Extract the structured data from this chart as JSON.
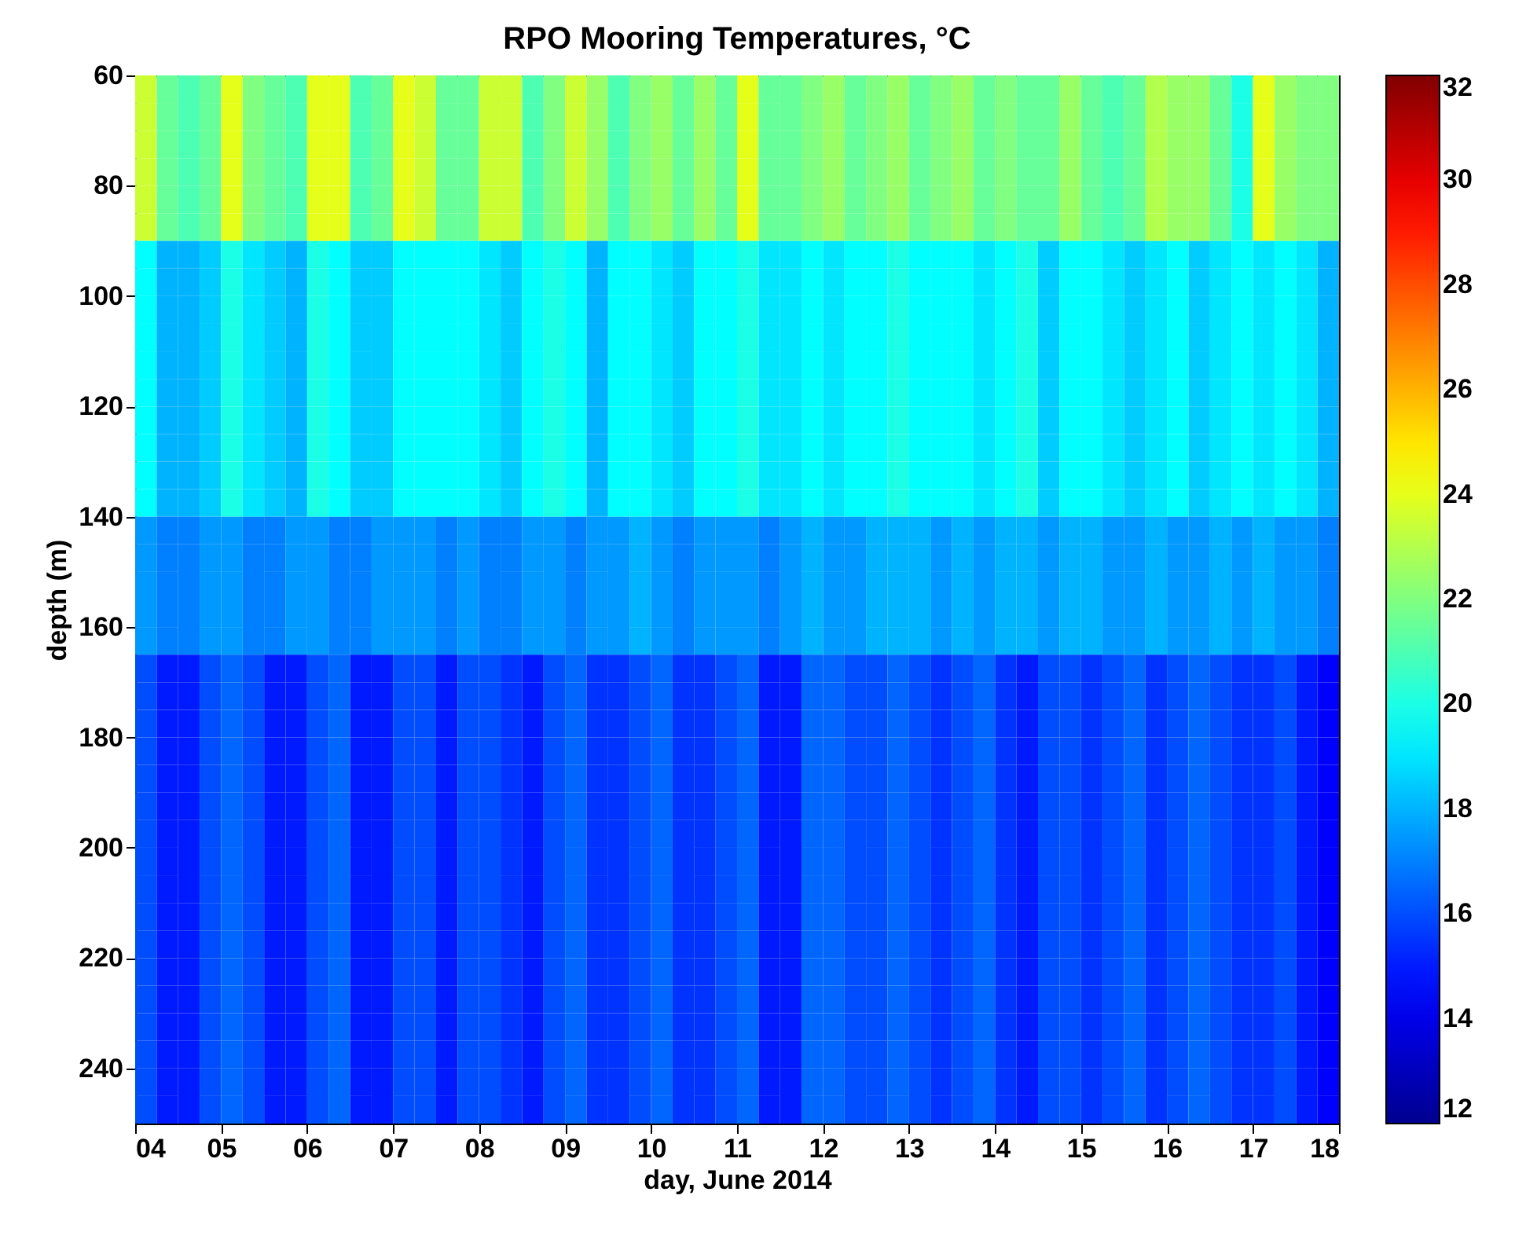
{
  "chart_data": {
    "type": "heatmap",
    "title": "RPO Mooring Temperatures, °C",
    "xlabel": "day, June 2014",
    "ylabel": "depth (m)",
    "x": [
      4.125,
      4.375,
      4.625,
      4.875,
      5.125,
      5.375,
      5.625,
      5.875,
      6.125,
      6.375,
      6.625,
      6.875,
      7.125,
      7.375,
      7.625,
      7.875,
      8.125,
      8.375,
      8.625,
      8.875,
      9.125,
      9.375,
      9.625,
      9.875,
      10.125,
      10.375,
      10.625,
      10.875,
      11.125,
      11.375,
      11.625,
      11.875,
      12.125,
      12.375,
      12.625,
      12.875,
      13.125,
      13.375,
      13.625,
      13.875,
      14.125,
      14.375,
      14.625,
      14.875,
      15.125,
      15.375,
      15.625,
      15.875,
      16.125,
      16.375,
      16.625,
      16.875,
      17.125,
      17.375,
      17.625,
      17.875
    ],
    "y": [
      62.5,
      67.5,
      72.5,
      77.5,
      82.5,
      87.5,
      92.5,
      97.5,
      102.5,
      107.5,
      112.5,
      117.5,
      122.5,
      127.5,
      132.5,
      137.5,
      142.5,
      147.5,
      152.5,
      157.5,
      162.5,
      167.5,
      172.5,
      177.5,
      182.5,
      187.5,
      192.5,
      197.5,
      202.5,
      207.5,
      212.5,
      217.5,
      222.5,
      227.5,
      232.5,
      237.5,
      242.5,
      247.5
    ],
    "cells": [
      [
        23.5,
        21.5,
        21,
        21.5,
        24,
        22,
        21.5,
        21,
        24,
        24,
        21,
        21.5,
        24,
        23.5,
        21.5,
        21.5,
        23.5,
        23.5,
        21,
        22,
        23.5,
        22.5,
        21,
        22,
        22.5,
        21.5,
        22.5,
        21.5,
        24,
        21.5,
        21.5,
        22,
        22.5,
        21.5,
        22,
        22.5,
        21.5,
        22,
        22.5,
        21.5,
        22,
        21.5,
        21.5,
        22.5,
        21.5,
        21,
        21.5,
        23,
        22.5,
        22.5,
        21.5,
        20,
        24,
        22.5,
        22,
        22
      ],
      [
        23.5,
        21.5,
        21,
        21.5,
        24,
        22,
        21.5,
        21,
        24,
        24,
        21,
        21.5,
        24,
        23.5,
        21.5,
        21.5,
        23.5,
        23.5,
        21,
        22,
        23.5,
        22.5,
        21,
        22,
        22.5,
        21.5,
        22.5,
        21.5,
        24,
        21.5,
        21.5,
        22,
        22.5,
        21.5,
        22,
        22.5,
        21.5,
        22,
        22.5,
        21.5,
        22,
        21.5,
        21.5,
        22.5,
        21.5,
        21,
        21.5,
        23,
        22.5,
        22.5,
        21.5,
        20,
        24,
        22.5,
        22,
        22
      ],
      [
        23.5,
        21.5,
        21,
        21.5,
        24,
        22,
        21.5,
        21,
        24,
        24,
        21,
        21.5,
        24,
        23.5,
        21.5,
        21.5,
        23.5,
        23.5,
        21,
        22,
        23.5,
        22.5,
        21,
        22,
        22.5,
        21.5,
        22.5,
        21.5,
        24,
        21.5,
        21.5,
        22,
        22.5,
        21.5,
        22,
        22.5,
        21.5,
        22,
        22.5,
        21.5,
        22,
        21.5,
        21.5,
        22.5,
        21.5,
        21,
        21.5,
        23,
        22.5,
        22.5,
        21.5,
        20,
        24,
        22.5,
        22,
        22
      ],
      [
        23.5,
        21.5,
        21,
        21.5,
        24,
        22,
        21.5,
        21,
        24,
        24,
        21,
        21.5,
        24,
        23.5,
        21.5,
        21.5,
        23.5,
        23.5,
        21,
        22,
        23.5,
        22.5,
        21,
        22,
        22.5,
        21.5,
        22.5,
        21.5,
        24,
        21.5,
        21.5,
        22,
        22.5,
        21.5,
        22,
        22.5,
        21.5,
        22,
        22.5,
        21.5,
        22,
        21.5,
        21.5,
        22.5,
        21.5,
        21,
        21.5,
        23,
        22.5,
        22.5,
        21.5,
        20,
        24,
        22.5,
        22,
        22
      ],
      [
        23.5,
        21.5,
        21,
        21.5,
        24,
        22,
        21.5,
        21,
        24,
        24,
        21,
        21.5,
        24,
        23.5,
        21.5,
        21.5,
        23.5,
        23.5,
        21,
        22,
        23.5,
        22.5,
        21,
        22,
        22.5,
        21.5,
        22.5,
        21.5,
        24,
        21.5,
        21.5,
        22,
        22.5,
        21.5,
        22,
        22.5,
        21.5,
        22,
        22.5,
        21.5,
        22,
        21.5,
        21.5,
        22.5,
        21.5,
        21,
        21.5,
        23,
        22.5,
        22.5,
        21.5,
        20,
        24,
        22.5,
        22,
        22
      ],
      [
        23.5,
        21.5,
        21,
        21.5,
        24,
        22,
        21.5,
        21,
        24,
        24,
        21,
        21.5,
        24,
        23.5,
        21.5,
        21.5,
        23.5,
        23.5,
        21,
        22,
        23.5,
        22.5,
        21,
        22,
        22.5,
        21.5,
        22.5,
        21.5,
        24,
        21.5,
        21.5,
        22,
        22.5,
        21.5,
        22,
        22.5,
        21.5,
        22,
        22.5,
        21.5,
        22,
        21.5,
        21.5,
        22.5,
        21.5,
        21,
        21.5,
        23,
        22.5,
        22.5,
        21.5,
        20,
        24,
        22.5,
        22,
        22
      ],
      [
        19.5,
        18,
        18,
        18.5,
        20,
        19,
        18.5,
        18,
        20,
        19.5,
        18.5,
        18.5,
        19.5,
        19.5,
        19.5,
        19.5,
        19,
        18.5,
        19.5,
        20,
        19.5,
        18,
        19.5,
        19.5,
        19,
        18.5,
        19.5,
        19.5,
        20,
        19,
        19,
        19.5,
        19,
        19.5,
        19.5,
        20,
        19.5,
        19.5,
        19.5,
        19,
        19.5,
        20,
        18.5,
        19.5,
        19.5,
        19,
        18.5,
        19,
        19.5,
        18.5,
        19,
        19.5,
        19,
        19.5,
        19,
        18
      ],
      [
        19.5,
        18,
        18,
        18.5,
        20,
        19,
        18.5,
        18,
        20,
        19.5,
        18.5,
        18.5,
        19.5,
        19.5,
        19.5,
        19.5,
        19,
        18.5,
        19.5,
        20,
        19.5,
        18,
        19.5,
        19.5,
        19,
        18.5,
        19.5,
        19.5,
        20,
        19,
        19,
        19.5,
        19,
        19.5,
        19.5,
        20,
        19.5,
        19.5,
        19.5,
        19,
        19.5,
        20,
        18.5,
        19.5,
        19.5,
        19,
        18.5,
        19,
        19.5,
        18.5,
        19,
        19.5,
        19,
        19.5,
        19,
        18
      ],
      [
        19.5,
        18,
        18,
        18.5,
        20,
        19,
        18.5,
        18,
        20,
        19.5,
        18.5,
        18.5,
        19.5,
        19.5,
        19.5,
        19.5,
        19,
        18.5,
        19.5,
        20,
        19.5,
        18,
        19.5,
        19.5,
        19,
        18.5,
        19.5,
        19.5,
        20,
        19,
        19,
        19.5,
        19,
        19.5,
        19.5,
        20,
        19.5,
        19.5,
        19.5,
        19,
        19.5,
        20,
        18.5,
        19.5,
        19.5,
        19,
        18.5,
        19,
        19.5,
        18.5,
        19,
        19.5,
        19,
        19.5,
        19,
        18
      ],
      [
        19.5,
        18,
        18,
        18.5,
        20,
        19,
        18.5,
        18,
        20,
        19.5,
        18.5,
        18.5,
        19.5,
        19.5,
        19.5,
        19.5,
        19,
        18.5,
        19.5,
        20,
        19.5,
        18,
        19.5,
        19.5,
        19,
        18.5,
        19.5,
        19.5,
        20,
        19,
        19,
        19.5,
        19,
        19.5,
        19.5,
        20,
        19.5,
        19.5,
        19.5,
        19,
        19.5,
        20,
        18.5,
        19.5,
        19.5,
        19,
        18.5,
        19,
        19.5,
        18.5,
        19,
        19.5,
        19,
        19.5,
        19,
        18
      ],
      [
        19.5,
        18,
        18,
        18.5,
        20,
        19,
        18.5,
        18,
        20,
        19.5,
        18.5,
        18.5,
        19.5,
        19.5,
        19.5,
        19.5,
        19,
        18.5,
        19.5,
        20,
        19.5,
        18,
        19.5,
        19.5,
        19,
        18.5,
        19.5,
        19.5,
        20,
        19,
        19,
        19.5,
        19,
        19.5,
        19.5,
        20,
        19.5,
        19.5,
        19.5,
        19,
        19.5,
        20,
        18.5,
        19.5,
        19.5,
        19,
        18.5,
        19,
        19.5,
        18.5,
        19,
        19.5,
        19,
        19.5,
        19,
        18
      ],
      [
        19.5,
        18,
        18,
        18.5,
        20,
        19,
        18.5,
        18,
        20,
        19.5,
        18.5,
        18.5,
        19.5,
        19.5,
        19.5,
        19.5,
        19,
        18.5,
        19.5,
        20,
        19.5,
        18,
        19.5,
        19.5,
        19,
        18.5,
        19.5,
        19.5,
        20,
        19,
        19,
        19.5,
        19,
        19.5,
        19.5,
        20,
        19.5,
        19.5,
        19.5,
        19,
        19.5,
        20,
        18.5,
        19.5,
        19.5,
        19,
        18.5,
        19,
        19.5,
        18.5,
        19,
        19.5,
        19,
        19.5,
        19,
        18
      ],
      [
        19.5,
        18,
        18,
        18.5,
        20,
        19,
        18.5,
        18,
        20,
        19.5,
        18.5,
        18.5,
        19.5,
        19.5,
        19.5,
        19.5,
        19,
        18.5,
        19.5,
        20,
        19.5,
        18,
        19.5,
        19.5,
        19,
        18.5,
        19.5,
        19.5,
        20,
        19,
        19,
        19.5,
        19,
        19.5,
        19.5,
        20,
        19.5,
        19.5,
        19.5,
        19,
        19.5,
        20,
        18.5,
        19.5,
        19.5,
        19,
        18.5,
        19,
        19.5,
        18.5,
        19,
        19.5,
        19,
        19.5,
        19,
        18
      ],
      [
        19.5,
        18,
        18,
        18.5,
        20,
        19,
        18.5,
        18,
        20,
        19.5,
        18.5,
        18.5,
        19.5,
        19.5,
        19.5,
        19.5,
        19,
        18.5,
        19.5,
        20,
        19.5,
        18,
        19.5,
        19.5,
        19,
        18.5,
        19.5,
        19.5,
        20,
        19,
        19,
        19.5,
        19,
        19.5,
        19.5,
        20,
        19.5,
        19.5,
        19.5,
        19,
        19.5,
        20,
        18.5,
        19.5,
        19.5,
        19,
        18.5,
        19,
        19.5,
        18.5,
        19,
        19.5,
        19,
        19.5,
        19,
        18
      ],
      [
        19.5,
        18,
        18,
        18.5,
        20,
        19,
        18.5,
        18,
        20,
        19.5,
        18.5,
        18.5,
        19.5,
        19.5,
        19.5,
        19.5,
        19,
        18.5,
        19.5,
        20,
        19.5,
        18,
        19.5,
        19.5,
        19,
        18.5,
        19.5,
        19.5,
        20,
        19,
        19,
        19.5,
        19,
        19.5,
        19.5,
        20,
        19.5,
        19.5,
        19.5,
        19,
        19.5,
        20,
        18.5,
        19.5,
        19.5,
        19,
        18.5,
        19,
        19.5,
        18.5,
        19,
        19.5,
        19,
        19.5,
        19,
        18
      ],
      [
        19.5,
        18,
        18,
        18.5,
        20,
        19,
        18.5,
        18,
        20,
        19.5,
        18.5,
        18.5,
        19.5,
        19.5,
        19.5,
        19.5,
        19,
        18.5,
        19.5,
        20,
        19.5,
        18,
        19.5,
        19.5,
        19,
        18.5,
        19.5,
        19.5,
        20,
        19,
        19,
        19.5,
        19,
        19.5,
        19.5,
        20,
        19.5,
        19.5,
        19.5,
        19,
        19.5,
        20,
        18.5,
        19.5,
        19.5,
        19,
        18.5,
        19,
        19.5,
        18.5,
        19,
        19.5,
        19,
        19.5,
        19,
        18
      ],
      [
        17.5,
        17,
        17,
        17.5,
        17.5,
        17,
        17,
        17.5,
        17.5,
        17,
        17,
        17.5,
        17.5,
        17.5,
        17,
        17.5,
        17,
        17,
        17.5,
        17.5,
        17,
        17.5,
        17.5,
        18,
        17.5,
        17,
        17.5,
        17.5,
        17.5,
        17,
        17.5,
        18,
        17.5,
        17.5,
        18,
        18,
        18,
        17.5,
        18,
        17.5,
        18,
        18,
        17.5,
        18,
        18,
        17.5,
        17.5,
        18,
        17.5,
        17.5,
        18,
        17.5,
        18,
        17.5,
        17.5,
        17
      ],
      [
        17.5,
        17,
        17,
        17.5,
        17.5,
        17,
        17,
        17.5,
        17.5,
        17,
        17,
        17.5,
        17.5,
        17.5,
        17,
        17.5,
        17,
        17,
        17.5,
        17.5,
        17,
        17.5,
        17.5,
        18,
        17.5,
        17,
        17.5,
        17.5,
        17.5,
        17,
        17.5,
        18,
        17.5,
        17.5,
        18,
        18,
        18,
        17.5,
        18,
        17.5,
        18,
        18,
        17.5,
        18,
        18,
        17.5,
        17.5,
        18,
        17.5,
        17.5,
        18,
        17.5,
        18,
        17.5,
        17.5,
        17
      ],
      [
        17.5,
        17,
        17,
        17.5,
        17.5,
        17,
        17,
        17.5,
        17.5,
        17,
        17,
        17.5,
        17.5,
        17.5,
        17,
        17.5,
        17,
        17,
        17.5,
        17.5,
        17,
        17.5,
        17.5,
        18,
        17.5,
        17,
        17.5,
        17.5,
        17.5,
        17,
        17.5,
        18,
        17.5,
        17.5,
        18,
        18,
        18,
        17.5,
        18,
        17.5,
        18,
        18,
        17.5,
        18,
        18,
        17.5,
        17.5,
        18,
        17.5,
        17.5,
        18,
        17.5,
        18,
        17.5,
        17.5,
        17
      ],
      [
        17.5,
        17,
        17,
        17.5,
        17.5,
        17,
        17,
        17.5,
        17.5,
        17,
        17,
        17.5,
        17.5,
        17.5,
        17,
        17.5,
        17,
        17,
        17.5,
        17.5,
        17,
        17.5,
        17.5,
        18,
        17.5,
        17,
        17.5,
        17.5,
        17.5,
        17,
        17.5,
        18,
        17.5,
        17.5,
        18,
        18,
        18,
        17.5,
        18,
        17.5,
        18,
        18,
        17.5,
        18,
        18,
        17.5,
        17.5,
        18,
        17.5,
        17.5,
        18,
        17.5,
        18,
        17.5,
        17.5,
        17
      ],
      [
        17.5,
        17,
        17,
        17.5,
        17.5,
        17,
        17,
        17.5,
        17.5,
        17,
        17,
        17.5,
        17.5,
        17.5,
        17,
        17.5,
        17,
        17,
        17.5,
        17.5,
        17,
        17.5,
        17.5,
        18,
        17.5,
        17,
        17.5,
        17.5,
        17.5,
        17,
        17.5,
        18,
        17.5,
        17.5,
        18,
        18,
        18,
        17.5,
        18,
        17.5,
        18,
        18,
        17.5,
        18,
        18,
        17.5,
        17.5,
        18,
        17.5,
        17.5,
        18,
        17.5,
        18,
        17.5,
        17.5,
        17
      ],
      [
        16,
        15,
        15,
        16,
        16.5,
        16,
        15,
        15,
        16,
        16.5,
        15,
        15,
        16,
        16,
        15,
        16,
        16,
        15.5,
        15,
        16,
        16.5,
        15.5,
        15.5,
        16,
        16.5,
        15.5,
        15.5,
        16,
        16.5,
        15,
        15,
        16.5,
        16.5,
        16,
        16,
        16.5,
        16,
        15.5,
        16,
        16.5,
        15.5,
        15,
        16,
        16,
        15.5,
        16,
        16.5,
        15.5,
        16,
        16.5,
        16,
        15.5,
        15.5,
        16,
        15,
        14.5
      ],
      [
        16,
        15,
        15,
        16,
        16.5,
        16,
        15,
        15,
        16,
        16.5,
        15,
        15,
        16,
        16,
        15,
        16,
        16,
        15.5,
        15,
        16,
        16.5,
        15.5,
        15.5,
        16,
        16.5,
        15.5,
        15.5,
        16,
        16.5,
        15,
        15,
        16.5,
        16.5,
        16,
        16,
        16.5,
        16,
        15.5,
        16,
        16.5,
        15.5,
        15,
        16,
        16,
        15.5,
        16,
        16.5,
        15.5,
        16,
        16.5,
        16,
        15.5,
        15.5,
        16,
        15,
        14.5
      ],
      [
        16,
        15,
        15,
        16,
        16.5,
        16,
        15,
        15,
        16,
        16.5,
        15,
        15,
        16,
        16,
        15,
        16,
        16,
        15.5,
        15,
        16,
        16.5,
        15.5,
        15.5,
        16,
        16.5,
        15.5,
        15.5,
        16,
        16.5,
        15,
        15,
        16.5,
        16.5,
        16,
        16,
        16.5,
        16,
        15.5,
        16,
        16.5,
        15.5,
        15,
        16,
        16,
        15.5,
        16,
        16.5,
        15.5,
        16,
        16.5,
        16,
        15.5,
        15.5,
        16,
        15,
        14.5
      ],
      [
        16,
        15,
        15,
        16,
        16.5,
        16,
        15,
        15,
        16,
        16.5,
        15,
        15,
        16,
        16,
        15,
        16,
        16,
        15.5,
        15,
        16,
        16.5,
        15.5,
        15.5,
        16,
        16.5,
        15.5,
        15.5,
        16,
        16.5,
        15,
        15,
        16.5,
        16.5,
        16,
        16,
        16.5,
        16,
        15.5,
        16,
        16.5,
        15.5,
        15,
        16,
        16,
        15.5,
        16,
        16.5,
        15.5,
        16,
        16.5,
        16,
        15.5,
        15.5,
        16,
        15,
        14.5
      ],
      [
        16,
        15,
        15,
        16,
        16.5,
        16,
        15,
        15,
        16,
        16.5,
        15,
        15,
        16,
        16,
        15,
        16,
        16,
        15.5,
        15,
        16,
        16.5,
        15.5,
        15.5,
        16,
        16.5,
        15.5,
        15.5,
        16,
        16.5,
        15,
        15,
        16.5,
        16.5,
        16,
        16,
        16.5,
        16,
        15.5,
        16,
        16.5,
        15.5,
        15,
        16,
        16,
        15.5,
        16,
        16.5,
        15.5,
        16,
        16.5,
        16,
        15.5,
        15.5,
        16,
        15,
        14.5
      ],
      [
        16,
        15,
        15,
        16,
        16.5,
        16,
        15,
        15,
        16,
        16.5,
        15,
        15,
        16,
        16,
        15,
        16,
        16,
        15.5,
        15,
        16,
        16.5,
        15.5,
        15.5,
        16,
        16.5,
        15.5,
        15.5,
        16,
        16.5,
        15,
        15,
        16.5,
        16.5,
        16,
        16,
        16.5,
        16,
        15.5,
        16,
        16.5,
        15.5,
        15,
        16,
        16,
        15.5,
        16,
        16.5,
        15.5,
        16,
        16.5,
        16,
        15.5,
        15.5,
        16,
        15,
        14.5
      ],
      [
        16,
        15,
        15,
        16,
        16.5,
        16,
        15,
        15,
        16,
        16.5,
        15,
        15,
        16,
        16,
        15,
        16,
        16,
        15.5,
        15,
        16,
        16.5,
        15.5,
        15.5,
        16,
        16.5,
        15.5,
        15.5,
        16,
        16.5,
        15,
        15,
        16.5,
        16.5,
        16,
        16,
        16.5,
        16,
        15.5,
        16,
        16.5,
        15.5,
        15,
        16,
        16,
        15.5,
        16,
        16.5,
        15.5,
        16,
        16.5,
        16,
        15.5,
        15.5,
        16,
        15,
        14.5
      ],
      [
        16,
        15,
        15,
        16,
        16.5,
        16,
        15,
        15,
        16,
        16.5,
        15,
        15,
        16,
        16,
        15,
        16,
        16,
        15.5,
        15,
        16,
        16.5,
        15.5,
        15.5,
        16,
        16.5,
        15.5,
        15.5,
        16,
        16.5,
        15,
        15,
        16.5,
        16.5,
        16,
        16,
        16.5,
        16,
        15.5,
        16,
        16.5,
        15.5,
        15,
        16,
        16,
        15.5,
        16,
        16.5,
        15.5,
        16,
        16.5,
        16,
        15.5,
        15.5,
        16,
        15,
        14.5
      ],
      [
        16,
        15,
        15,
        16,
        16.5,
        16,
        15,
        15,
        16,
        16.5,
        15,
        15,
        16,
        16,
        15,
        16,
        16,
        15.5,
        15,
        16,
        16.5,
        15.5,
        15.5,
        16,
        16.5,
        15.5,
        15.5,
        16,
        16.5,
        15,
        15,
        16.5,
        16.5,
        16,
        16,
        16.5,
        16,
        15.5,
        16,
        16.5,
        15.5,
        15,
        16,
        16,
        15.5,
        16,
        16.5,
        15.5,
        16,
        16.5,
        16,
        15.5,
        15.5,
        16,
        15,
        14.5
      ],
      [
        16,
        15,
        15,
        16,
        16.5,
        16,
        15,
        15,
        16,
        16.5,
        15,
        15,
        16,
        16,
        15,
        16,
        16,
        15.5,
        15,
        16,
        16.5,
        15.5,
        15.5,
        16,
        16.5,
        15.5,
        15.5,
        16,
        16.5,
        15,
        15,
        16.5,
        16.5,
        16,
        16,
        16.5,
        16,
        15.5,
        16,
        16.5,
        15.5,
        15,
        16,
        16,
        15.5,
        16,
        16.5,
        15.5,
        16,
        16.5,
        16,
        15.5,
        15.5,
        16,
        15,
        14.5
      ],
      [
        16,
        15,
        15,
        16,
        16.5,
        16,
        15,
        15,
        16,
        16.5,
        15,
        15,
        16,
        16,
        15,
        16,
        16,
        15.5,
        15,
        16,
        16.5,
        15.5,
        15.5,
        16,
        16.5,
        15.5,
        15.5,
        16,
        16.5,
        15,
        15,
        16.5,
        16.5,
        16,
        16,
        16.5,
        16,
        15.5,
        16,
        16.5,
        15.5,
        15,
        16,
        16,
        15.5,
        16,
        16.5,
        15.5,
        16,
        16.5,
        16,
        15.5,
        15.5,
        16,
        15,
        14.5
      ],
      [
        16,
        15,
        15,
        16,
        16.5,
        16,
        15,
        15,
        16,
        16.5,
        15,
        15,
        16,
        16,
        15,
        16,
        16,
        15.5,
        15,
        16,
        16.5,
        15.5,
        15.5,
        16,
        16.5,
        15.5,
        15.5,
        16,
        16.5,
        15,
        15,
        16.5,
        16.5,
        16,
        16,
        16.5,
        16,
        15.5,
        16,
        16.5,
        15.5,
        15,
        16,
        16,
        15.5,
        16,
        16.5,
        15.5,
        16,
        16.5,
        16,
        15.5,
        15.5,
        16,
        15,
        14.5
      ],
      [
        16,
        15,
        15,
        16,
        16.5,
        16,
        15,
        15,
        16,
        16.5,
        15,
        15,
        16,
        16,
        15,
        16,
        16,
        15.5,
        15,
        16,
        16.5,
        15.5,
        15.5,
        16,
        16.5,
        15.5,
        15.5,
        16,
        16.5,
        15,
        15,
        16.5,
        16.5,
        16,
        16,
        16.5,
        16,
        15.5,
        16,
        16.5,
        15.5,
        15,
        16,
        16,
        15.5,
        16,
        16.5,
        15.5,
        16,
        16.5,
        16,
        15.5,
        15.5,
        16,
        15,
        14.5
      ],
      [
        16,
        15,
        15,
        16,
        16.5,
        16,
        15,
        15,
        16,
        16.5,
        15,
        15,
        16,
        16,
        15,
        16,
        16,
        15.5,
        15,
        16,
        16.5,
        15.5,
        15.5,
        16,
        16.5,
        15.5,
        15.5,
        16,
        16.5,
        15,
        15,
        16.5,
        16.5,
        16,
        16,
        16.5,
        16,
        15.5,
        16,
        16.5,
        15.5,
        15,
        16,
        16,
        15.5,
        16,
        16.5,
        15.5,
        16,
        16.5,
        16,
        15.5,
        15.5,
        16,
        15,
        14.5
      ],
      [
        16,
        15,
        15,
        16,
        16.5,
        16,
        15,
        15,
        16,
        16.5,
        15,
        15,
        16,
        16,
        15,
        16,
        16,
        15.5,
        15,
        16,
        16.5,
        15.5,
        15.5,
        16,
        16.5,
        15.5,
        15.5,
        16,
        16.5,
        15,
        15,
        16.5,
        16.5,
        16,
        16,
        16.5,
        16,
        15.5,
        16,
        16.5,
        15.5,
        15,
        16,
        16,
        15.5,
        16,
        16.5,
        15.5,
        16,
        16.5,
        16,
        15.5,
        15.5,
        16,
        15,
        14.5
      ],
      [
        16,
        15,
        15,
        16,
        16.5,
        16,
        15,
        15,
        16,
        16.5,
        15,
        15,
        16,
        16,
        15,
        16,
        16,
        15.5,
        15,
        16,
        16.5,
        15.5,
        15.5,
        16,
        16.5,
        15.5,
        15.5,
        16,
        16.5,
        15,
        15,
        16.5,
        16.5,
        16,
        16,
        16.5,
        16,
        15.5,
        16,
        16.5,
        15.5,
        15,
        16,
        16,
        15.5,
        16,
        16.5,
        15.5,
        16,
        16.5,
        16,
        15.5,
        15.5,
        16,
        15,
        14.5
      ],
      [
        16,
        15,
        15,
        16,
        16.5,
        16,
        15,
        15,
        16,
        16.5,
        15,
        15,
        16,
        16,
        15,
        16,
        16,
        15.5,
        15,
        16,
        16.5,
        15.5,
        15.5,
        16,
        16.5,
        15.5,
        15.5,
        16,
        16.5,
        15,
        15,
        16.5,
        16.5,
        16,
        16,
        16.5,
        16,
        15.5,
        16,
        16.5,
        15.5,
        15,
        16,
        16,
        15.5,
        16,
        16.5,
        15.5,
        16,
        16.5,
        16,
        15.5,
        15.5,
        16,
        15,
        14.5
      ]
    ],
    "xlim": [
      4,
      18
    ],
    "xticks": [
      {
        "value": 4,
        "label": "04"
      },
      {
        "value": 5,
        "label": "05"
      },
      {
        "value": 6,
        "label": "06"
      },
      {
        "value": 7,
        "label": "07"
      },
      {
        "value": 8,
        "label": "08"
      },
      {
        "value": 9,
        "label": "09"
      },
      10,
      11,
      12,
      13,
      14,
      15,
      16,
      17,
      18
    ],
    "ylim": [
      250,
      60
    ],
    "yticks": [
      60,
      80,
      100,
      120,
      140,
      160,
      180,
      200,
      220,
      240
    ],
    "clim": [
      12,
      32
    ],
    "cticks": [
      12,
      14,
      16,
      18,
      20,
      22,
      24,
      26,
      28,
      30,
      32
    ],
    "grid": false
  }
}
